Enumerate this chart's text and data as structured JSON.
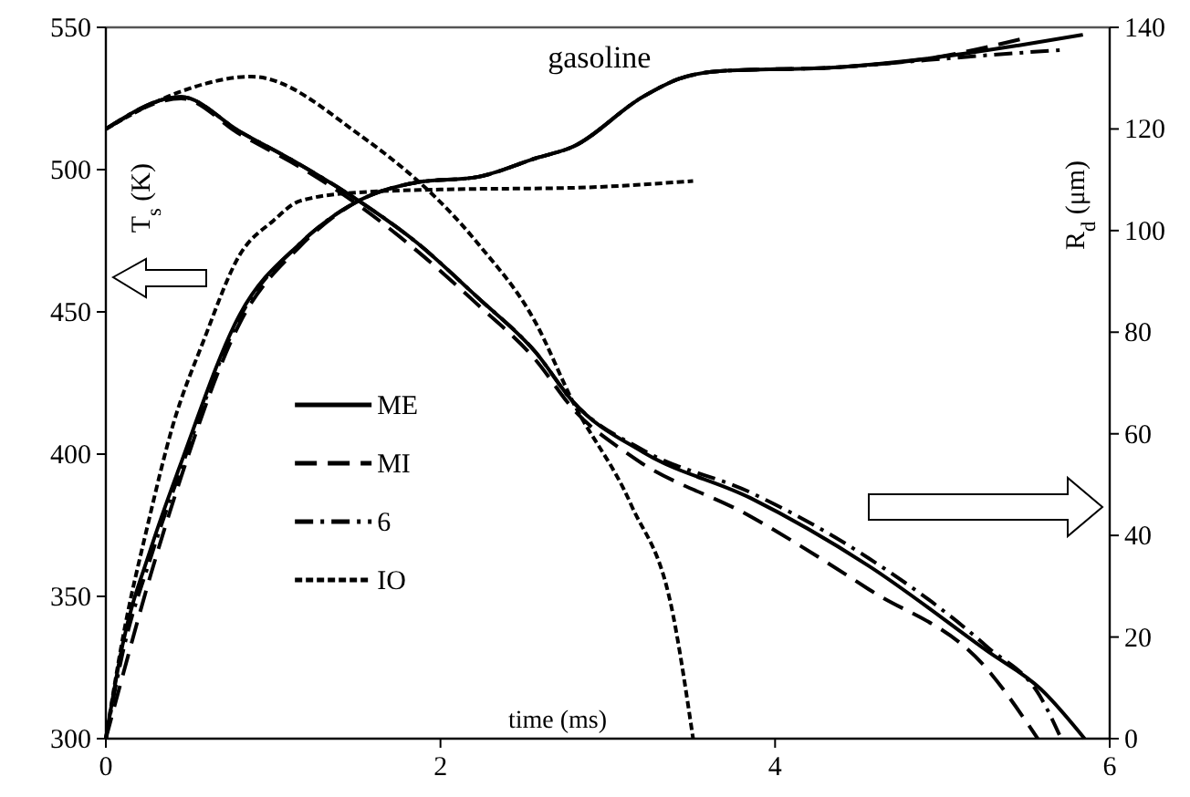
{
  "chart_data": {
    "type": "line",
    "title": "gasoline",
    "xlabel": "time (ms)",
    "ylabel": "T$_{s}$ (K)",
    "y2label": "R$_{d}$ (μm)",
    "xlim": [
      0,
      6
    ],
    "xticks": [
      0,
      2,
      4,
      6
    ],
    "ylim": [
      300,
      550
    ],
    "yticks": [
      300,
      350,
      400,
      450,
      500,
      550
    ],
    "y2lim": [
      0,
      140
    ],
    "y2ticks": [
      0,
      20,
      40,
      60,
      80,
      100,
      120,
      140
    ],
    "grid": false,
    "legend": "left",
    "marker": "none",
    "series": [
      {
        "name": "ME",
        "color": "#000000",
        "line_style": "solid",
        "x": [
          0,
          0.1,
          0.27,
          0.45,
          0.8,
          1.16,
          1.51,
          1.86,
          2.22,
          2.57,
          2.79,
          3.21,
          3.43,
          3.67,
          4.38,
          4.91,
          5.45,
          5.84
        ],
        "values": [
          300,
          333,
          367,
          397,
          449,
          474,
          489,
          495.5,
          497.4,
          504,
          508,
          525.6,
          532,
          534.6,
          536,
          539,
          543.6,
          547.4
        ]
      },
      {
        "name": "MI",
        "color": "#000000",
        "line_style": "dashed",
        "x": [
          0,
          0.1,
          0.27,
          0.45,
          0.8,
          1.16,
          1.51,
          1.86,
          2.22,
          2.57,
          2.79,
          3.21,
          3.43,
          3.67,
          4.38,
          4.91,
          5.48
        ],
        "values": [
          300,
          322,
          358,
          392,
          446,
          473,
          489,
          495.5,
          497.4,
          504,
          508,
          525.6,
          532,
          534.6,
          536,
          539,
          546
        ]
      },
      {
        "name": "6",
        "color": "#000000",
        "line_style": "dashdot",
        "x": [
          0,
          0.1,
          0.27,
          0.45,
          0.8,
          1.16,
          1.51,
          1.86,
          2.22,
          2.57,
          2.79,
          3.21,
          3.43,
          3.67,
          4.38,
          4.91,
          5.45,
          5.71
        ],
        "values": [
          300,
          330,
          364,
          395,
          448,
          474,
          489,
          495.5,
          497.4,
          504,
          508,
          525.6,
          532,
          534.6,
          536,
          538.5,
          541,
          542
        ]
      },
      {
        "name": "IO",
        "color": "#000000",
        "line_style": "dotted",
        "x": [
          0,
          0.1,
          0.25,
          0.4,
          0.585,
          0.8,
          1.0,
          1.16,
          1.51,
          2.0,
          2.79,
          3.51
        ],
        "values": [
          300,
          335,
          375,
          410,
          440,
          470,
          482,
          489,
          492,
          493,
          493.6,
          496
        ]
      },
      {
        "color": "#000000",
        "line_style": "solid",
        "axis": "y2",
        "x": [
          0,
          0.45,
          0.8,
          1.16,
          1.51,
          1.86,
          2.22,
          2.57,
          2.79,
          3.21,
          3.85,
          4.56,
          5.27,
          5.59,
          5.85
        ],
        "values": [
          120,
          126.3,
          119.5,
          113,
          105.9,
          97.6,
          86.9,
          76,
          66.4,
          56.4,
          47.4,
          34,
          17.2,
          9.7,
          0
        ]
      },
      {
        "color": "#000000",
        "line_style": "dashed",
        "axis": "y2",
        "x": [
          0,
          0.45,
          0.8,
          1.16,
          1.51,
          1.86,
          2.22,
          2.57,
          2.79,
          3.14,
          3.85,
          4.56,
          5.27,
          5.57
        ],
        "values": [
          120,
          126,
          119,
          112.5,
          105,
          96,
          85.5,
          74.5,
          65,
          55.6,
          43.8,
          29.4,
          13.6,
          0
        ]
      },
      {
        "color": "#000000",
        "line_style": "dashdot",
        "axis": "y2",
        "x": [
          0,
          0.45,
          0.8,
          1.16,
          1.51,
          1.86,
          2.22,
          2.57,
          2.79,
          3.21,
          3.85,
          4.56,
          5.27,
          5.59,
          5.71
        ],
        "values": [
          120,
          126.3,
          119.5,
          113,
          105.9,
          97.6,
          86.9,
          76,
          66.4,
          56.8,
          48.5,
          35.5,
          18,
          8,
          0
        ]
      },
      {
        "color": "#000000",
        "line_style": "dotted",
        "axis": "y2",
        "x": [
          0,
          0.45,
          0.87,
          1.51,
          2.22,
          2.57,
          2.79,
          3.14,
          3.39,
          3.51
        ],
        "values": [
          120,
          127.4,
          130.3,
          119,
          97.6,
          81.8,
          66.4,
          46,
          24.4,
          0
        ]
      }
    ]
  }
}
